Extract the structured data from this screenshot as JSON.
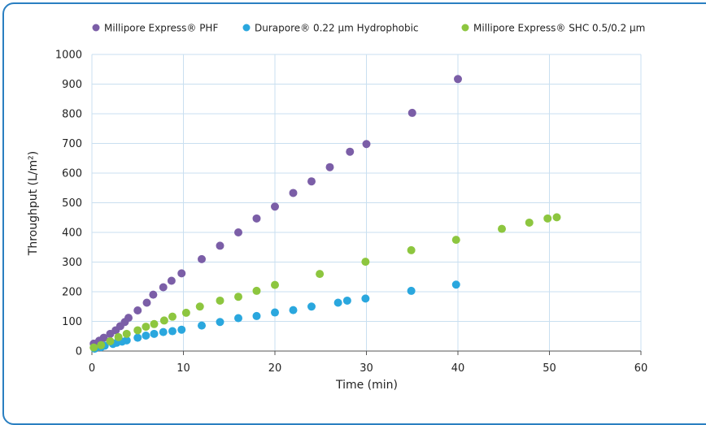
{
  "chart_data": {
    "type": "scatter",
    "xlabel": "Time (min)",
    "ylabel": "Throughput (L/m²)",
    "xlim": [
      0,
      60
    ],
    "ylim": [
      0,
      1000
    ],
    "x_ticks": [
      "0",
      "10",
      "20",
      "30",
      "40",
      "50",
      "60"
    ],
    "y_ticks": [
      "0",
      "100",
      "200",
      "300",
      "400",
      "500",
      "600",
      "700",
      "800",
      "900",
      "1000"
    ],
    "grid": true,
    "legend_position": "top",
    "series": [
      {
        "name": "Millipore Express® PHF",
        "color": "#7b5ea7",
        "points": [
          [
            0.2,
            25
          ],
          [
            0.8,
            35
          ],
          [
            1.3,
            45
          ],
          [
            2,
            58
          ],
          [
            2.6,
            70
          ],
          [
            3.1,
            84
          ],
          [
            3.6,
            98
          ],
          [
            4,
            112
          ],
          [
            5,
            137
          ],
          [
            6,
            163
          ],
          [
            6.7,
            190
          ],
          [
            7.8,
            215
          ],
          [
            8.7,
            237
          ],
          [
            9.8,
            262
          ],
          [
            12,
            310
          ],
          [
            14,
            355
          ],
          [
            16,
            400
          ],
          [
            18,
            447
          ],
          [
            20,
            487
          ],
          [
            22,
            533
          ],
          [
            24,
            572
          ],
          [
            26,
            620
          ],
          [
            28.2,
            672
          ],
          [
            30,
            698
          ],
          [
            35,
            803
          ],
          [
            40,
            917
          ]
        ]
      },
      {
        "name": "Durapore® 0.22 µm Hydrophobic",
        "color": "#2aa7de",
        "points": [
          [
            0.3,
            8
          ],
          [
            1,
            13
          ],
          [
            1.4,
            18
          ],
          [
            2.3,
            24
          ],
          [
            2.7,
            28
          ],
          [
            3.3,
            32
          ],
          [
            3.8,
            36
          ],
          [
            5,
            45
          ],
          [
            5.9,
            52
          ],
          [
            6.8,
            58
          ],
          [
            7.8,
            64
          ],
          [
            8.8,
            67
          ],
          [
            9.8,
            72
          ],
          [
            12,
            86
          ],
          [
            14,
            98
          ],
          [
            16,
            111
          ],
          [
            18,
            118
          ],
          [
            20,
            130
          ],
          [
            22,
            138
          ],
          [
            24,
            150
          ],
          [
            26.9,
            163
          ],
          [
            27.9,
            170
          ],
          [
            29.9,
            177
          ],
          [
            34.9,
            203
          ],
          [
            39.8,
            224
          ]
        ]
      },
      {
        "name": "Millipore Express® SHC 0.5/0.2 µm",
        "color": "#8dc63f",
        "points": [
          [
            0.2,
            12
          ],
          [
            1,
            20
          ],
          [
            2,
            33
          ],
          [
            2.9,
            47
          ],
          [
            3.8,
            58
          ],
          [
            5,
            70
          ],
          [
            5.9,
            82
          ],
          [
            6.8,
            91
          ],
          [
            7.9,
            103
          ],
          [
            8.8,
            116
          ],
          [
            10.3,
            129
          ],
          [
            11.8,
            150
          ],
          [
            14,
            170
          ],
          [
            16,
            183
          ],
          [
            18,
            203
          ],
          [
            20,
            223
          ],
          [
            24.9,
            260
          ],
          [
            29.9,
            301
          ],
          [
            34.9,
            340
          ],
          [
            39.8,
            375
          ],
          [
            44.8,
            412
          ],
          [
            47.8,
            433
          ],
          [
            49.8,
            447
          ],
          [
            50.8,
            451
          ]
        ]
      }
    ]
  }
}
